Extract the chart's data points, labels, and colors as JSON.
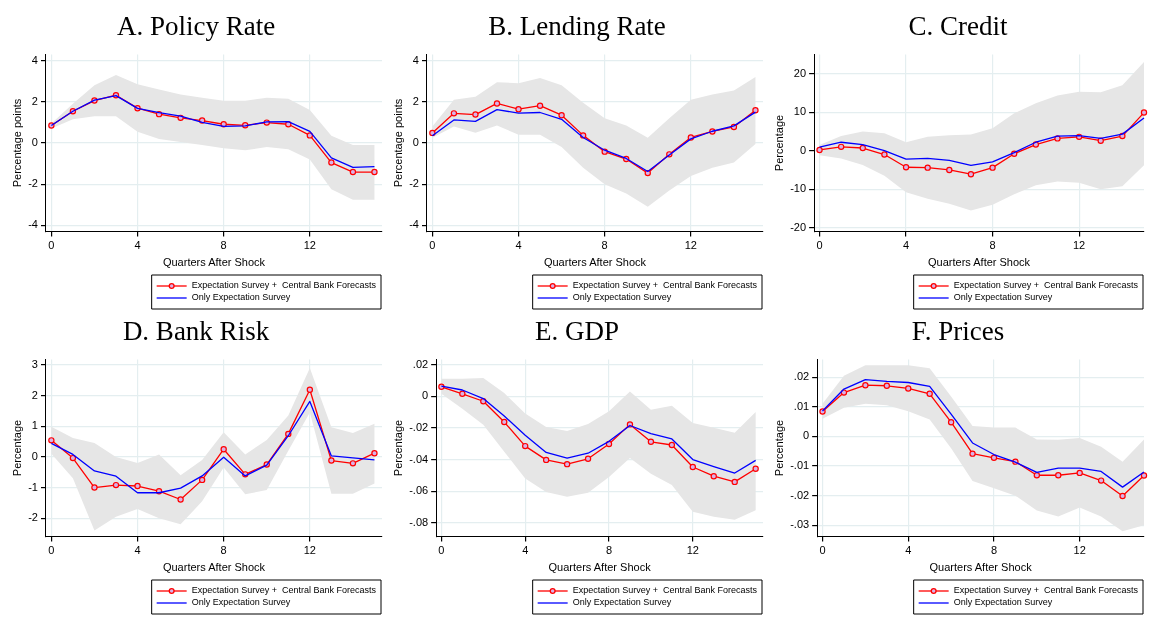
{
  "chart_data": [
    {
      "type": "line",
      "title": "A. Policy Rate",
      "xlabel": "Quarters After Shock",
      "ylabel": "Percentage points",
      "x": [
        0,
        1,
        2,
        3,
        4,
        5,
        6,
        7,
        8,
        9,
        10,
        11,
        12,
        13,
        14,
        15
      ],
      "xlim": [
        -0.25,
        15.35
      ],
      "xticks": [
        0,
        4,
        8,
        12
      ],
      "ylim": [
        -4.3,
        4.3
      ],
      "yticks": [
        -4,
        -2,
        0,
        2,
        4
      ],
      "grid": true,
      "legend": "bottom right",
      "series": [
        {
          "name": "Expectation Survey +  Central Bank Forecasts",
          "color": "#ff0000",
          "marker": "circle",
          "values": [
            0.85,
            1.54,
            2.06,
            2.32,
            1.69,
            1.4,
            1.22,
            1.09,
            0.91,
            0.86,
            0.99,
            0.91,
            0.37,
            -0.95,
            -1.41,
            -1.41
          ],
          "lower": [
            0.7,
            1.15,
            1.3,
            1.3,
            0.55,
            0.2,
            0.05,
            -0.1,
            -0.25,
            -0.35,
            -0.2,
            -0.3,
            -0.8,
            -2.25,
            -2.75,
            -2.75
          ],
          "upper": [
            0.95,
            1.9,
            2.8,
            3.3,
            2.85,
            2.6,
            2.35,
            2.2,
            2.05,
            2.05,
            2.2,
            2.15,
            1.6,
            0.35,
            -0.1,
            -0.1
          ]
        },
        {
          "name": "Only Expectation Survey",
          "color": "#0000ff",
          "marker": "none",
          "values": [
            0.85,
            1.54,
            2.08,
            2.3,
            1.68,
            1.47,
            1.3,
            1.0,
            0.81,
            0.83,
            1.03,
            1.04,
            0.56,
            -0.72,
            -1.18,
            -1.15
          ]
        }
      ]
    },
    {
      "type": "line",
      "title": "B. Lending Rate",
      "xlabel": "Quarters After Shock",
      "ylabel": "Percentage points",
      "x": [
        0,
        1,
        2,
        3,
        4,
        5,
        6,
        7,
        8,
        9,
        10,
        11,
        12,
        13,
        14,
        15
      ],
      "xlim": [
        -0.25,
        15.35
      ],
      "xticks": [
        0,
        4,
        8,
        12
      ],
      "ylim": [
        -4.3,
        4.3
      ],
      "yticks": [
        -4,
        -2,
        0,
        2,
        4
      ],
      "grid": true,
      "legend": "bottom right",
      "series": [
        {
          "name": "Expectation Survey +  Central Bank Forecasts",
          "color": "#ff0000",
          "marker": "circle",
          "values": [
            0.49,
            1.44,
            1.38,
            1.92,
            1.64,
            1.81,
            1.35,
            0.37,
            -0.42,
            -0.78,
            -1.46,
            -0.55,
            0.27,
            0.56,
            0.78,
            1.59
          ],
          "lower": [
            0.25,
            0.8,
            0.5,
            0.85,
            0.4,
            0.4,
            -0.2,
            -1.2,
            -2.0,
            -2.45,
            -3.1,
            -2.3,
            -1.6,
            -1.2,
            -0.95,
            -0.05
          ],
          "upper": [
            0.8,
            2.1,
            2.25,
            2.95,
            2.9,
            3.15,
            2.8,
            1.95,
            1.2,
            0.85,
            0.25,
            1.2,
            2.1,
            2.35,
            2.55,
            3.2
          ]
        },
        {
          "name": "Only Expectation Survey",
          "color": "#0000ff",
          "marker": "none",
          "values": [
            0.35,
            1.12,
            1.05,
            1.62,
            1.45,
            1.48,
            1.15,
            0.27,
            -0.35,
            -0.75,
            -1.38,
            -0.58,
            0.2,
            0.57,
            0.83,
            1.5
          ]
        }
      ]
    },
    {
      "type": "line",
      "title": "C. Credit",
      "xlabel": "Quarters After Shock",
      "ylabel": "Percentage",
      "x": [
        0,
        1,
        2,
        3,
        4,
        5,
        6,
        7,
        8,
        9,
        10,
        11,
        12,
        13,
        14,
        15
      ],
      "xlim": [
        -0.25,
        15
      ],
      "xticks": [
        0,
        4,
        8,
        12
      ],
      "ylim": [
        -21,
        25
      ],
      "yticks": [
        -20,
        -10,
        0,
        10,
        20
      ],
      "grid": true,
      "legend": "bottom right",
      "series": [
        {
          "name": "Expectation Survey +  Central Bank Forecasts",
          "color": "#ff0000",
          "marker": "circle",
          "values": [
            0.2,
            1.0,
            0.7,
            -1.0,
            -4.3,
            -4.4,
            -5.0,
            -6.1,
            -4.4,
            -0.8,
            1.6,
            3.2,
            3.6,
            2.6,
            3.8,
            9.9
          ],
          "lower": [
            -1.2,
            -2.0,
            -3.7,
            -6.5,
            -10.8,
            -12.5,
            -13.8,
            -15.5,
            -14.0,
            -11.3,
            -9.0,
            -8.0,
            -8.3,
            -10.0,
            -9.2,
            -3.8
          ],
          "upper": [
            1.5,
            3.8,
            5.0,
            4.5,
            2.2,
            3.6,
            4.0,
            4.2,
            5.8,
            9.7,
            12.3,
            14.3,
            15.3,
            15.2,
            17.0,
            23.0
          ]
        },
        {
          "name": "Only Expectation Survey",
          "color": "#0000ff",
          "marker": "none",
          "values": [
            0.9,
            2.2,
            1.6,
            0,
            -2.2,
            -2.0,
            -2.5,
            -3.8,
            -2.9,
            -0.5,
            2.2,
            3.8,
            3.9,
            3.2,
            4.3,
            8.5
          ]
        }
      ]
    },
    {
      "type": "line",
      "title": "D. Bank Risk",
      "xlabel": "Quarters After Shock",
      "ylabel": "Percentage",
      "x": [
        0,
        1,
        2,
        3,
        4,
        5,
        6,
        7,
        8,
        9,
        10,
        11,
        12,
        13,
        14,
        15
      ],
      "xlim": [
        -0.25,
        15.35
      ],
      "xticks": [
        0,
        4,
        8,
        12
      ],
      "ylim": [
        -2.6,
        3.18
      ],
      "yticks": [
        -2,
        -1,
        0,
        1,
        2,
        3
      ],
      "grid": true,
      "legend": "bottom right",
      "series": [
        {
          "name": "Expectation Survey +  Central Bank Forecasts",
          "color": "#ff0000",
          "marker": "circle",
          "values": [
            0.54,
            -0.04,
            -1.0,
            -0.92,
            -0.95,
            -1.12,
            -1.39,
            -0.75,
            0.25,
            -0.57,
            -0.25,
            0.75,
            2.19,
            -0.12,
            -0.21,
            0.12
          ],
          "lower": [
            0.1,
            -0.7,
            -2.4,
            -1.95,
            -1.7,
            -2.0,
            -2.2,
            -1.45,
            -0.35,
            -1.22,
            -1.08,
            0.2,
            1.45,
            -1.2,
            -1.2,
            -0.87
          ],
          "upper": [
            0.98,
            0.62,
            0.45,
            0.0,
            -0.2,
            0.08,
            -0.6,
            -0.1,
            0.8,
            0.08,
            0.55,
            1.35,
            2.9,
            0.97,
            0.78,
            1.08
          ]
        },
        {
          "name": "Only Expectation Survey",
          "color": "#0000ff",
          "marker": "none",
          "values": [
            0.44,
            0.08,
            -0.46,
            -0.63,
            -1.17,
            -1.17,
            -1.02,
            -0.62,
            -0.01,
            -0.62,
            -0.27,
            0.69,
            1.81,
            0.03,
            -0.03,
            -0.1
          ]
        }
      ]
    },
    {
      "type": "line",
      "title": "E. GDP",
      "xlabel": "Quarters After Shock",
      "ylabel": "Percentage",
      "x": [
        0,
        1,
        2,
        3,
        4,
        5,
        6,
        7,
        8,
        9,
        10,
        11,
        12,
        13,
        14,
        15
      ],
      "xlim": [
        -0.25,
        15.35
      ],
      "xticks": [
        0,
        4,
        8,
        12
      ],
      "ylim": [
        -0.0886,
        0.0232
      ],
      "yticks": [
        {
          "value": -0.08,
          "label": "-.08"
        },
        {
          "value": -0.06,
          "label": "-.06"
        },
        {
          "value": -0.04,
          "label": "-.04"
        },
        {
          "value": -0.02,
          "label": "-.02"
        },
        0,
        {
          "value": 0.02,
          "label": ".02"
        }
      ],
      "grid": true,
      "legend": "bottom right",
      "series": [
        {
          "name": "Expectation Survey +  Central Bank Forecasts",
          "color": "#ff0000",
          "marker": "circle",
          "values": [
            0.0059,
            0.0015,
            -0.0032,
            -0.0163,
            -0.0315,
            -0.0402,
            -0.0429,
            -0.0395,
            -0.0302,
            -0.0178,
            -0.0288,
            -0.0308,
            -0.0447,
            -0.0505,
            -0.0541,
            -0.0458
          ],
          "lower": [
            0.0015,
            -0.008,
            -0.018,
            -0.035,
            -0.052,
            -0.0605,
            -0.0635,
            -0.061,
            -0.051,
            -0.039,
            -0.049,
            -0.056,
            -0.073,
            -0.076,
            -0.078,
            -0.072
          ],
          "upper": [
            0.011,
            0.011,
            0.0115,
            0.002,
            -0.011,
            -0.0195,
            -0.022,
            -0.0175,
            -0.0095,
            0.003,
            -0.0085,
            -0.006,
            -0.017,
            -0.02,
            -0.023,
            -0.01
          ]
        },
        {
          "name": "Only Expectation Survey",
          "color": "#0000ff",
          "marker": "none",
          "values": [
            0.0063,
            0.0039,
            -0.0015,
            -0.0125,
            -0.0247,
            -0.0355,
            -0.0391,
            -0.036,
            -0.0285,
            -0.0185,
            -0.0236,
            -0.027,
            -0.04,
            -0.0444,
            -0.0485,
            -0.0405
          ]
        }
      ]
    },
    {
      "type": "line",
      "title": "F. Prices",
      "xlabel": "Quarters After Shock",
      "ylabel": "Percentage",
      "x": [
        0,
        1,
        2,
        3,
        4,
        5,
        6,
        7,
        8,
        9,
        10,
        11,
        12,
        13,
        14,
        15
      ],
      "xlim": [
        -0.25,
        15
      ],
      "xticks": [
        0,
        4,
        8,
        12
      ],
      "ylim": [
        -0.0338,
        0.026
      ],
      "yticks": [
        {
          "value": -0.03,
          "label": "-.03"
        },
        {
          "value": -0.02,
          "label": "-.02"
        },
        {
          "value": -0.01,
          "label": "-.01"
        },
        0,
        {
          "value": 0.01,
          "label": ".01"
        },
        {
          "value": 0.02,
          "label": ".02"
        }
      ],
      "grid": true,
      "legend": "bottom right",
      "series": [
        {
          "name": "Expectation Survey +  Central Bank Forecasts",
          "color": "#ff0000",
          "marker": "circle",
          "values": [
            0.0084,
            0.0148,
            0.0173,
            0.0171,
            0.0162,
            0.0144,
            0.0048,
            -0.0058,
            -0.0072,
            -0.0085,
            -0.0131,
            -0.0131,
            -0.0123,
            -0.0149,
            -0.0201,
            -0.0132
          ],
          "lower": [
            0.006,
            0.0097,
            0.011,
            0.0105,
            0.0085,
            0.0057,
            -0.004,
            -0.015,
            -0.0175,
            -0.02,
            -0.025,
            -0.027,
            -0.024,
            -0.027,
            -0.032,
            -0.03
          ],
          "upper": [
            0.011,
            0.0205,
            0.024,
            0.024,
            0.024,
            0.023,
            0.0135,
            0.0035,
            0.003,
            0.003,
            -0.001,
            -0.0011,
            -0.0005,
            -0.0035,
            -0.0085,
            -0.001
          ]
        },
        {
          "name": "Only Expectation Survey",
          "color": "#0000ff",
          "marker": "none",
          "values": [
            0.0086,
            0.016,
            0.0192,
            0.0186,
            0.0182,
            0.0169,
            0.0075,
            -0.0022,
            -0.0061,
            -0.0087,
            -0.0121,
            -0.0107,
            -0.0107,
            -0.0118,
            -0.0171,
            -0.012
          ]
        }
      ]
    }
  ]
}
